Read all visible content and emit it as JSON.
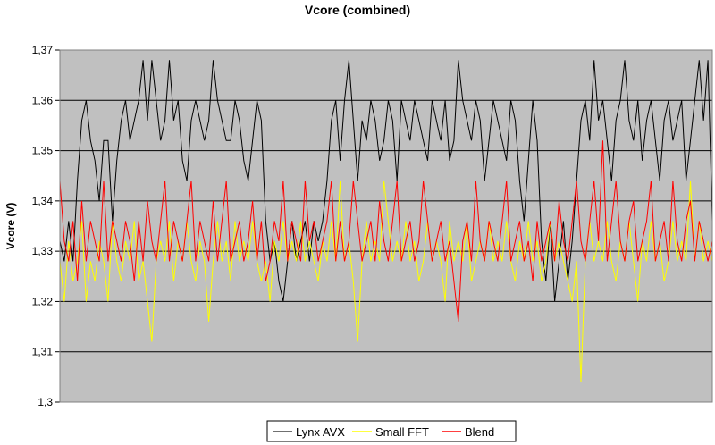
{
  "chart_data": {
    "type": "line",
    "title": "Vcore (combined)",
    "xlabel": "",
    "ylabel": "Vcore (V)",
    "ylim": [
      1.3,
      1.37
    ],
    "yticks": [
      "1,37",
      "1,36",
      "1,35",
      "1,34",
      "1,33",
      "1,32",
      "1,31",
      "1,3"
    ],
    "ytick_values": [
      1.37,
      1.36,
      1.35,
      1.34,
      1.33,
      1.32,
      1.31,
      1.3
    ],
    "grid": true,
    "legend_position": "bottom",
    "series": [
      {
        "name": "Lynx AVX",
        "color": "#000000",
        "values": [
          1.332,
          1.328,
          1.336,
          1.328,
          1.344,
          1.356,
          1.36,
          1.352,
          1.348,
          1.34,
          1.352,
          1.352,
          1.336,
          1.348,
          1.356,
          1.36,
          1.352,
          1.356,
          1.36,
          1.368,
          1.356,
          1.368,
          1.36,
          1.352,
          1.356,
          1.368,
          1.356,
          1.36,
          1.348,
          1.344,
          1.356,
          1.36,
          1.356,
          1.352,
          1.356,
          1.368,
          1.36,
          1.356,
          1.352,
          1.352,
          1.36,
          1.356,
          1.348,
          1.344,
          1.352,
          1.36,
          1.356,
          1.336,
          1.328,
          1.332,
          1.324,
          1.32,
          1.328,
          1.336,
          1.328,
          1.332,
          1.336,
          1.328,
          1.336,
          1.332,
          1.336,
          1.344,
          1.356,
          1.36,
          1.348,
          1.36,
          1.368,
          1.356,
          1.344,
          1.356,
          1.352,
          1.36,
          1.356,
          1.348,
          1.352,
          1.36,
          1.356,
          1.344,
          1.36,
          1.356,
          1.352,
          1.36,
          1.356,
          1.352,
          1.348,
          1.36,
          1.356,
          1.352,
          1.36,
          1.348,
          1.352,
          1.368,
          1.36,
          1.356,
          1.352,
          1.36,
          1.356,
          1.344,
          1.352,
          1.36,
          1.356,
          1.352,
          1.348,
          1.36,
          1.356,
          1.344,
          1.336,
          1.348,
          1.36,
          1.352,
          1.332,
          1.324,
          1.336,
          1.32,
          1.328,
          1.336,
          1.324,
          1.332,
          1.344,
          1.356,
          1.36,
          1.352,
          1.368,
          1.356,
          1.36,
          1.352,
          1.344,
          1.356,
          1.36,
          1.368,
          1.356,
          1.352,
          1.36,
          1.348,
          1.356,
          1.36,
          1.352,
          1.344,
          1.356,
          1.36,
          1.352,
          1.356,
          1.36,
          1.344,
          1.352,
          1.36,
          1.368,
          1.356,
          1.368,
          1.336
        ]
      },
      {
        "name": "Small FFT",
        "color": "#ffff00",
        "values": [
          1.328,
          1.32,
          1.332,
          1.324,
          1.328,
          1.336,
          1.32,
          1.328,
          1.324,
          1.332,
          1.328,
          1.32,
          1.336,
          1.328,
          1.324,
          1.332,
          1.328,
          1.336,
          1.324,
          1.328,
          1.32,
          1.312,
          1.328,
          1.332,
          1.328,
          1.336,
          1.324,
          1.332,
          1.328,
          1.336,
          1.328,
          1.324,
          1.332,
          1.328,
          1.316,
          1.328,
          1.336,
          1.328,
          1.332,
          1.324,
          1.336,
          1.328,
          1.332,
          1.328,
          1.336,
          1.328,
          1.324,
          1.328,
          1.32,
          1.332,
          1.328,
          1.336,
          1.328,
          1.332,
          1.328,
          1.336,
          1.328,
          1.332,
          1.328,
          1.324,
          1.332,
          1.328,
          1.336,
          1.328,
          1.344,
          1.328,
          1.332,
          1.324,
          1.312,
          1.328,
          1.336,
          1.328,
          1.332,
          1.328,
          1.344,
          1.336,
          1.328,
          1.332,
          1.328,
          1.336,
          1.328,
          1.332,
          1.324,
          1.328,
          1.336,
          1.328,
          1.332,
          1.328,
          1.32,
          1.336,
          1.328,
          1.332,
          1.328,
          1.336,
          1.324,
          1.328,
          1.332,
          1.328,
          1.336,
          1.328,
          1.332,
          1.328,
          1.336,
          1.328,
          1.324,
          1.332,
          1.328,
          1.336,
          1.328,
          1.332,
          1.324,
          1.328,
          1.336,
          1.328,
          1.332,
          1.328,
          1.324,
          1.32,
          1.328,
          1.304,
          1.328,
          1.336,
          1.328,
          1.332,
          1.328,
          1.336,
          1.328,
          1.324,
          1.332,
          1.328,
          1.336,
          1.328,
          1.32,
          1.332,
          1.328,
          1.336,
          1.328,
          1.332,
          1.324,
          1.328,
          1.336,
          1.328,
          1.332,
          1.328,
          1.344,
          1.328,
          1.336,
          1.328,
          1.332,
          1.328
        ]
      },
      {
        "name": "Blend",
        "color": "#ff0000",
        "values": [
          1.344,
          1.332,
          1.328,
          1.336,
          1.324,
          1.34,
          1.328,
          1.336,
          1.332,
          1.328,
          1.344,
          1.328,
          1.336,
          1.332,
          1.328,
          1.336,
          1.332,
          1.324,
          1.336,
          1.328,
          1.34,
          1.332,
          1.328,
          1.336,
          1.344,
          1.328,
          1.336,
          1.332,
          1.328,
          1.336,
          1.344,
          1.328,
          1.336,
          1.332,
          1.328,
          1.34,
          1.328,
          1.336,
          1.344,
          1.328,
          1.332,
          1.336,
          1.328,
          1.332,
          1.34,
          1.328,
          1.336,
          1.324,
          1.328,
          1.336,
          1.332,
          1.344,
          1.328,
          1.336,
          1.332,
          1.328,
          1.344,
          1.332,
          1.336,
          1.328,
          1.332,
          1.336,
          1.344,
          1.328,
          1.336,
          1.328,
          1.332,
          1.344,
          1.336,
          1.328,
          1.332,
          1.336,
          1.328,
          1.34,
          1.332,
          1.328,
          1.336,
          1.344,
          1.328,
          1.332,
          1.336,
          1.328,
          1.332,
          1.344,
          1.336,
          1.328,
          1.332,
          1.336,
          1.328,
          1.332,
          1.324,
          1.316,
          1.332,
          1.336,
          1.328,
          1.344,
          1.332,
          1.328,
          1.336,
          1.332,
          1.328,
          1.336,
          1.344,
          1.328,
          1.332,
          1.336,
          1.328,
          1.332,
          1.324,
          1.336,
          1.328,
          1.332,
          1.336,
          1.328,
          1.34,
          1.332,
          1.328,
          1.336,
          1.344,
          1.332,
          1.328,
          1.336,
          1.344,
          1.332,
          1.352,
          1.328,
          1.336,
          1.344,
          1.332,
          1.328,
          1.336,
          1.34,
          1.328,
          1.332,
          1.336,
          1.344,
          1.328,
          1.332,
          1.336,
          1.328,
          1.344,
          1.332,
          1.328,
          1.336,
          1.34,
          1.328,
          1.336,
          1.332,
          1.328,
          1.332
        ]
      }
    ]
  }
}
